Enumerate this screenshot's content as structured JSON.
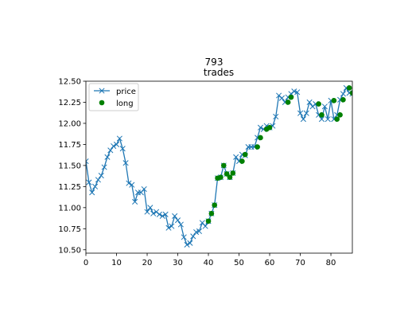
{
  "chart_data": {
    "type": "line",
    "title": "793",
    "subtitle": "trades",
    "xlabel": "",
    "ylabel": "",
    "xlim": [
      0,
      87
    ],
    "ylim": [
      10.46,
      12.5
    ],
    "xticks": [
      0,
      10,
      20,
      30,
      40,
      50,
      60,
      70,
      80
    ],
    "yticks": [
      10.5,
      10.75,
      11.0,
      11.25,
      11.5,
      11.75,
      12.0,
      12.25,
      12.5
    ],
    "ytick_labels": [
      "10.50",
      "10.75",
      "11.00",
      "11.25",
      "11.50",
      "11.75",
      "12.00",
      "12.25",
      "12.50"
    ],
    "grid": false,
    "legend_position": "top-left",
    "series": [
      {
        "name": "price",
        "style": "line-x-marker",
        "color": "#1f77b4",
        "x": [
          0,
          1,
          2,
          3,
          4,
          5,
          6,
          7,
          8,
          9,
          10,
          11,
          12,
          13,
          14,
          15,
          16,
          17,
          18,
          19,
          20,
          21,
          22,
          23,
          24,
          25,
          26,
          27,
          28,
          29,
          30,
          31,
          32,
          33,
          34,
          35,
          36,
          37,
          38,
          39,
          40,
          41,
          42,
          43,
          44,
          45,
          46,
          47,
          48,
          49,
          50,
          51,
          52,
          53,
          54,
          55,
          56,
          57,
          58,
          59,
          60,
          61,
          62,
          63,
          64,
          65,
          66,
          67,
          68,
          69,
          70,
          71,
          72,
          73,
          74,
          75,
          76,
          77,
          78,
          79,
          80,
          81,
          82,
          83,
          84,
          85,
          86,
          87
        ],
        "y": [
          11.55,
          11.3,
          11.18,
          11.25,
          11.33,
          11.38,
          11.48,
          11.6,
          11.68,
          11.73,
          11.75,
          11.82,
          11.7,
          11.53,
          11.29,
          11.27,
          11.07,
          11.18,
          11.18,
          11.22,
          10.95,
          11.0,
          10.93,
          10.95,
          10.92,
          10.9,
          10.92,
          10.76,
          10.78,
          10.9,
          10.85,
          10.8,
          10.65,
          10.56,
          10.58,
          10.66,
          10.71,
          10.72,
          10.82,
          10.78,
          10.84,
          10.93,
          11.03,
          11.35,
          11.36,
          11.5,
          11.4,
          11.36,
          11.41,
          11.6,
          11.55,
          11.63,
          11.62,
          11.72,
          11.72,
          11.72,
          11.83,
          11.95,
          11.93,
          11.97,
          11.95,
          11.97,
          12.08,
          12.33,
          12.3,
          12.25,
          12.31,
          12.35,
          12.38,
          12.37,
          12.12,
          12.05,
          12.12,
          12.25,
          12.2,
          12.23,
          12.1,
          12.05,
          12.2,
          12.05,
          12.27,
          12.05,
          12.1,
          12.28,
          12.35,
          12.42,
          12.36,
          12.35
        ]
      },
      {
        "name": "long",
        "style": "marker-circle",
        "color": "#008000",
        "x": [
          40,
          41,
          42,
          43,
          44,
          45,
          46,
          47,
          48,
          51,
          52,
          56,
          57,
          59,
          60,
          66,
          67,
          76,
          77,
          81,
          82,
          83,
          84,
          86,
          87
        ],
        "y": [
          10.84,
          10.93,
          11.03,
          11.35,
          11.36,
          11.5,
          11.4,
          11.36,
          11.41,
          11.55,
          11.63,
          11.72,
          11.83,
          11.93,
          11.95,
          12.25,
          12.31,
          12.23,
          12.1,
          12.27,
          12.05,
          12.1,
          12.28,
          12.42,
          12.36
        ]
      }
    ]
  }
}
